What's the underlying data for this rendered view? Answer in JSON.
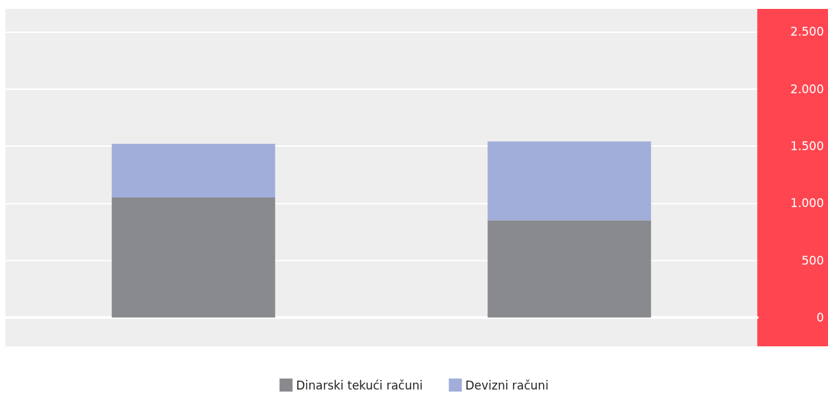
{
  "chart_data": {
    "type": "bar",
    "stacked": true,
    "categories": [
      null,
      null
    ],
    "series": [
      {
        "name": "Dinarski tekući računi",
        "color": "#898a8e",
        "values": [
          1050,
          850
        ]
      },
      {
        "name": "Devizni računi",
        "color": "#a0aed9",
        "values": [
          470,
          690
        ]
      }
    ],
    "ylim": [
      0,
      2700
    ],
    "yticks": [
      {
        "value": 0,
        "label": "0"
      },
      {
        "value": 500,
        "label": "500"
      },
      {
        "value": 1000,
        "label": "1.000"
      },
      {
        "value": 1500,
        "label": "1.500"
      },
      {
        "value": 2000,
        "label": "2.000"
      },
      {
        "value": 2500,
        "label": "2.500"
      }
    ],
    "grid": "y",
    "legend": "bottom"
  }
}
